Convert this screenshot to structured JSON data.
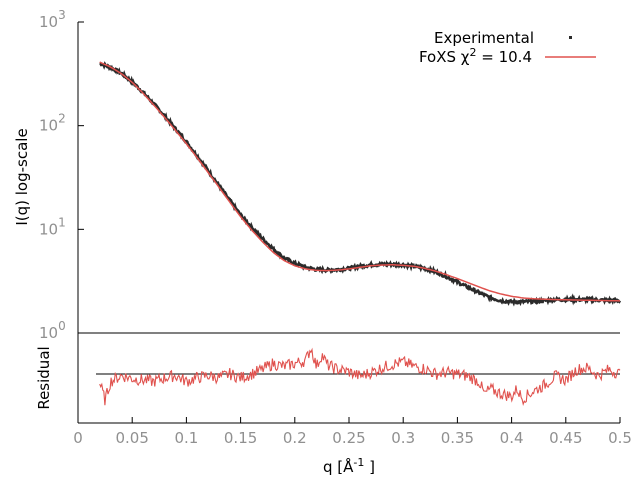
{
  "colors": {
    "experimental": "#2b2b2b",
    "fit": "#e0524e",
    "axis": "#000000",
    "tick_label": "#909090",
    "zero_line": "#000000"
  },
  "chart_data": [
    {
      "type": "line",
      "panel": "main",
      "xlabel": "",
      "ylabel": "I(q) log-scale",
      "xlim": [
        0,
        0.5
      ],
      "ylim": [
        1,
        1000
      ],
      "yscale": "log",
      "grid": false,
      "legend_placement": "top-right",
      "y_ticks": [
        {
          "value": 1,
          "base": "10",
          "exp": "0"
        },
        {
          "value": 10,
          "base": "10",
          "exp": "1"
        },
        {
          "value": 100,
          "base": "10",
          "exp": "2"
        },
        {
          "value": 1000,
          "base": "10",
          "exp": "3"
        }
      ],
      "legend": {
        "experimental_label": "Experimental",
        "fit_label_prefix": "FoXS χ",
        "fit_label_sup": "2",
        "fit_label_suffix": " = 10.4"
      },
      "series": [
        {
          "name": "Experimental",
          "style": "points",
          "x": [
            0.02,
            0.03,
            0.04,
            0.05,
            0.06,
            0.07,
            0.08,
            0.09,
            0.1,
            0.11,
            0.12,
            0.13,
            0.14,
            0.15,
            0.16,
            0.17,
            0.18,
            0.19,
            0.2,
            0.21,
            0.22,
            0.23,
            0.24,
            0.25,
            0.26,
            0.27,
            0.28,
            0.29,
            0.3,
            0.31,
            0.32,
            0.33,
            0.34,
            0.35,
            0.36,
            0.37,
            0.38,
            0.39,
            0.4,
            0.41,
            0.42,
            0.43,
            0.44,
            0.45,
            0.46,
            0.47,
            0.48,
            0.49,
            0.5
          ],
          "y": [
            400,
            365,
            320,
            265,
            210,
            162,
            124,
            93,
            70,
            51,
            37,
            26.5,
            19,
            13.8,
            10.5,
            8.2,
            6.5,
            5.3,
            4.7,
            4.3,
            4.1,
            4.05,
            4.1,
            4.2,
            4.4,
            4.55,
            4.6,
            4.6,
            4.55,
            4.4,
            4.2,
            3.9,
            3.5,
            3.1,
            2.75,
            2.45,
            2.2,
            2.05,
            2.0,
            2.0,
            2.02,
            2.05,
            2.1,
            2.1,
            2.1,
            2.1,
            2.08,
            2.07,
            2.05
          ]
        },
        {
          "name": "FoXS χ2 = 10.4",
          "style": "line",
          "x": [
            0.02,
            0.03,
            0.04,
            0.05,
            0.06,
            0.07,
            0.08,
            0.09,
            0.1,
            0.11,
            0.12,
            0.13,
            0.14,
            0.15,
            0.16,
            0.17,
            0.18,
            0.19,
            0.2,
            0.21,
            0.22,
            0.23,
            0.24,
            0.25,
            0.26,
            0.27,
            0.28,
            0.29,
            0.3,
            0.31,
            0.32,
            0.33,
            0.34,
            0.35,
            0.36,
            0.37,
            0.38,
            0.39,
            0.4,
            0.41,
            0.42,
            0.43,
            0.44,
            0.45,
            0.46,
            0.47,
            0.48,
            0.49,
            0.5
          ],
          "y": [
            410,
            368,
            318,
            262,
            206,
            158,
            120,
            90,
            67,
            49,
            35.5,
            25.5,
            18.3,
            13.2,
            9.9,
            7.6,
            6.0,
            5.0,
            4.45,
            4.15,
            4.02,
            4.0,
            4.05,
            4.15,
            4.3,
            4.45,
            4.52,
            4.55,
            4.5,
            4.4,
            4.2,
            3.95,
            3.65,
            3.35,
            3.05,
            2.78,
            2.55,
            2.38,
            2.26,
            2.18,
            2.14,
            2.12,
            2.1,
            2.09,
            2.08,
            2.07,
            2.06,
            2.05,
            2.04
          ]
        }
      ]
    },
    {
      "type": "line",
      "panel": "residual",
      "xlabel": "q [Å⁻¹]",
      "xlabel_base": "q [Å",
      "xlabel_sup": "-1",
      "xlabel_close": " ]",
      "ylabel": "Residual",
      "xlim": [
        0,
        0.5
      ],
      "ylim": [
        -5,
        5
      ],
      "x_ticks": [
        "0",
        "0.05",
        "0.1",
        "0.15",
        "0.2",
        "0.25",
        "0.3",
        "0.35",
        "0.4",
        "0.45",
        "0.5"
      ],
      "zero_line": 0,
      "series": [
        {
          "name": "",
          "x": [
            0.02,
            0.025,
            0.03,
            0.035,
            0.04,
            0.05,
            0.06,
            0.07,
            0.08,
            0.09,
            0.1,
            0.11,
            0.12,
            0.13,
            0.14,
            0.15,
            0.16,
            0.17,
            0.18,
            0.19,
            0.2,
            0.21,
            0.215,
            0.22,
            0.225,
            0.23,
            0.24,
            0.25,
            0.26,
            0.27,
            0.28,
            0.29,
            0.3,
            0.31,
            0.32,
            0.33,
            0.34,
            0.35,
            0.36,
            0.37,
            0.375,
            0.38,
            0.39,
            0.4,
            0.405,
            0.41,
            0.42,
            0.43,
            0.44,
            0.45,
            0.46,
            0.47,
            0.48,
            0.49,
            0.5
          ],
          "y": [
            -1.2,
            -3.5,
            -1.0,
            -0.6,
            -0.2,
            -0.6,
            -0.8,
            -1.0,
            -0.5,
            -0.2,
            -1.0,
            -0.5,
            -0.2,
            -0.5,
            0.0,
            -0.5,
            0.0,
            0.6,
            1.4,
            1.0,
            1.4,
            1.8,
            3.5,
            1.0,
            2.6,
            1.2,
            0.6,
            0.3,
            -0.3,
            0.2,
            0.8,
            1.3,
            1.6,
            1.0,
            0.7,
            0.0,
            0.2,
            0.0,
            -0.3,
            -1.0,
            -2.7,
            -2.0,
            -2.6,
            -3.0,
            -2.0,
            -3.3,
            -2.3,
            -1.5,
            -0.3,
            -0.8,
            0.6,
            0.8,
            -0.2,
            0.6,
            0.0
          ]
        }
      ]
    }
  ]
}
